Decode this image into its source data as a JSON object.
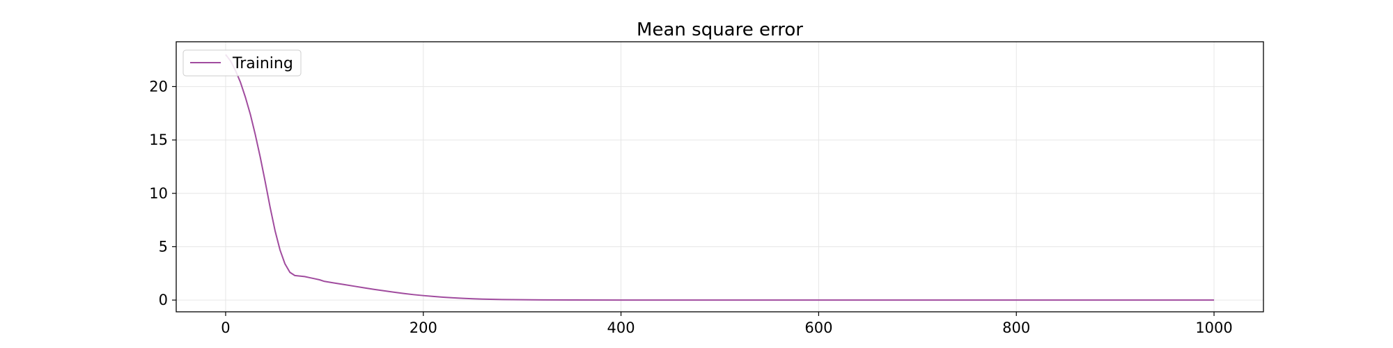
{
  "chart_data": {
    "type": "line",
    "title": "Mean square error",
    "xlabel": "",
    "ylabel": "",
    "xlim": [
      -50,
      1050
    ],
    "ylim": [
      -1.1,
      24.2
    ],
    "xticks": [
      0,
      200,
      400,
      600,
      800,
      1000
    ],
    "yticks": [
      0,
      5,
      10,
      15,
      20
    ],
    "grid": true,
    "legend_position": "upper-left",
    "series": [
      {
        "name": "Training",
        "color": "#a04b9e",
        "x": [
          0,
          5,
          10,
          15,
          20,
          25,
          30,
          35,
          40,
          45,
          50,
          55,
          60,
          65,
          70,
          75,
          80,
          85,
          90,
          95,
          100,
          110,
          120,
          130,
          140,
          150,
          160,
          170,
          180,
          190,
          200,
          210,
          220,
          230,
          240,
          250,
          260,
          280,
          300,
          320,
          350,
          400,
          450,
          500,
          600,
          700,
          800,
          900,
          1000
        ],
        "y": [
          23.0,
          22.4,
          21.5,
          20.4,
          19.0,
          17.4,
          15.5,
          13.4,
          11.1,
          8.7,
          6.5,
          4.7,
          3.4,
          2.6,
          2.3,
          2.25,
          2.2,
          2.1,
          2.0,
          1.9,
          1.75,
          1.6,
          1.45,
          1.3,
          1.15,
          1.0,
          0.87,
          0.74,
          0.62,
          0.51,
          0.42,
          0.34,
          0.27,
          0.21,
          0.16,
          0.12,
          0.09,
          0.05,
          0.03,
          0.02,
          0.01,
          0.0,
          0.0,
          0.0,
          0.0,
          0.0,
          0.0,
          0.0,
          0.0
        ]
      }
    ]
  }
}
